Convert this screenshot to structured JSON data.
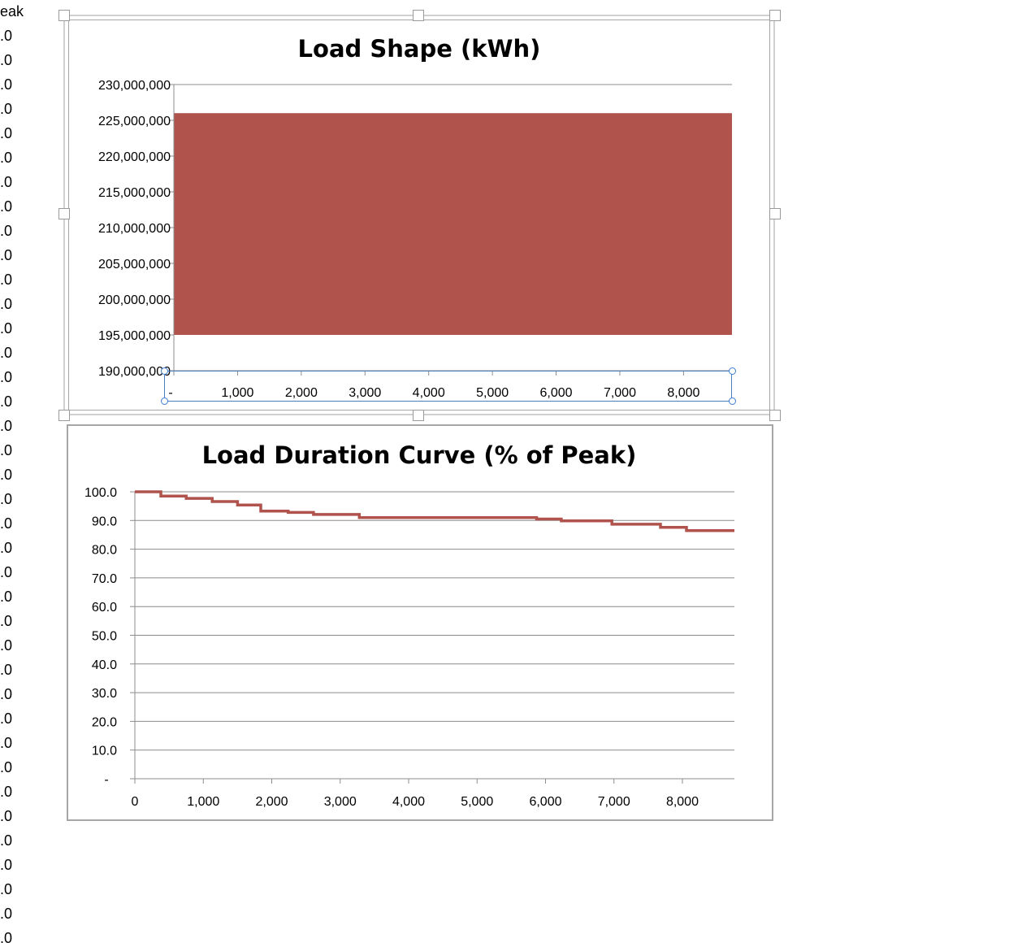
{
  "sheet": {
    "header": "eak",
    "cells": [
      ".0",
      ".0",
      ".0",
      ".0",
      ".0",
      ".0",
      ".0",
      ".0",
      ".0",
      ".0",
      ".0",
      ".0",
      ".0",
      ".0",
      ".0",
      ".0",
      ".0",
      ".0",
      ".0",
      ".0",
      ".0",
      ".0",
      ".0",
      ".0",
      ".0",
      ".0",
      ".0",
      ".0",
      ".0",
      ".0",
      ".0",
      ".0",
      ".0",
      ".0",
      ".0",
      ".0",
      ".0",
      ".0"
    ]
  },
  "chart_data": [
    {
      "type": "area",
      "title": "Load Shape (kWh)",
      "xlabel": "",
      "ylabel": "",
      "xlim": [
        0,
        8760
      ],
      "ylim": [
        190000000,
        230000000
      ],
      "y_ticks": [
        190000000,
        195000000,
        200000000,
        205000000,
        210000000,
        215000000,
        220000000,
        225000000,
        230000000
      ],
      "y_tick_labels": [
        "190,000,000",
        "195,000,000",
        "200,000,000",
        "205,000,000",
        "210,000,000",
        "215,000,000",
        "220,000,000",
        "225,000,000",
        "230,000,000"
      ],
      "x_ticks": [
        0,
        1000,
        2000,
        3000,
        4000,
        5000,
        6000,
        7000,
        8000
      ],
      "x_tick_labels": [
        "-",
        "1,000",
        "2,000",
        "3,000",
        "4,000",
        "5,000",
        "6,000",
        "7,000",
        "8,000"
      ],
      "series": [
        {
          "color": "#b0534d",
          "x_range": [
            0,
            8760
          ],
          "y_min": 195000000,
          "y_max": 226000000
        }
      ],
      "grid": false,
      "legend": "none"
    },
    {
      "type": "line",
      "title": "Load Duration Curve (% of Peak)",
      "xlabel": "",
      "ylabel": "",
      "xlim": [
        0,
        8760
      ],
      "ylim": [
        0,
        100
      ],
      "y_ticks": [
        0,
        10,
        20,
        30,
        40,
        50,
        60,
        70,
        80,
        90,
        100
      ],
      "y_tick_labels": [
        "-",
        "10.0",
        "20.0",
        "30.0",
        "40.0",
        "50.0",
        "60.0",
        "70.0",
        "80.0",
        "90.0",
        "100.0"
      ],
      "x_ticks": [
        0,
        1000,
        2000,
        3000,
        4000,
        5000,
        6000,
        7000,
        8000
      ],
      "x_tick_labels": [
        "0",
        "1,000",
        "2,000",
        "3,000",
        "4,000",
        "5,000",
        "6,000",
        "7,000",
        "8,000"
      ],
      "series": [
        {
          "color": "#b0534d",
          "x": [
            0,
            380,
            380,
            750,
            750,
            1130,
            1130,
            1500,
            1500,
            1840,
            1840,
            2240,
            2240,
            2610,
            2610,
            3280,
            3280,
            5870,
            5870,
            6230,
            6230,
            6970,
            6970,
            7680,
            7680,
            8060,
            8060,
            8760
          ],
          "y": [
            100,
            100,
            98.5,
            98.5,
            97.7,
            97.7,
            96.6,
            96.6,
            95.4,
            95.4,
            93.3,
            93.3,
            92.8,
            92.8,
            92.1,
            92.1,
            91.0,
            91.0,
            90.5,
            90.5,
            89.9,
            89.9,
            88.7,
            88.7,
            87.6,
            87.6,
            86.5,
            86.5
          ]
        }
      ],
      "grid": true,
      "legend": "none"
    }
  ]
}
